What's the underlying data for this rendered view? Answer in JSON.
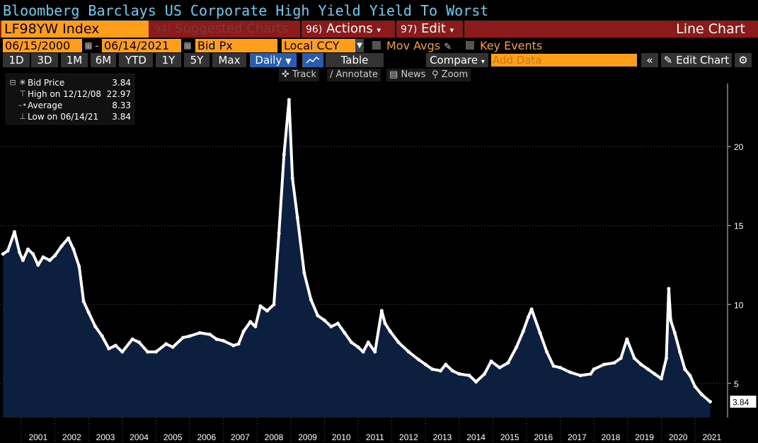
{
  "title": "Bloomberg Barclays US Corporate High Yield Yield To Worst",
  "toolbar": {
    "ticker": "LF98YW Index",
    "suggested": {
      "num": "94)",
      "label": "Suggested Charts"
    },
    "actions": {
      "num": "96)",
      "label": "Actions"
    },
    "edit": {
      "num": "97)",
      "label": "Edit"
    },
    "chart_type": "Line Chart",
    "start_date": "06/15/2000",
    "end_date": "06/14/2021",
    "field": "Bid Px",
    "currency": "Local CCY",
    "mov_avgs": "Mov Avgs",
    "key_events": "Key Events",
    "periods": [
      "1D",
      "3D",
      "1M",
      "6M",
      "YTD",
      "1Y",
      "5Y",
      "Max"
    ],
    "frequency": "Daily",
    "table": "Table",
    "compare": "Compare",
    "add_data_placeholder": "Add Data",
    "edit_chart": "Edit Chart",
    "tools": [
      "Track",
      "Annotate",
      "News",
      "Zoom"
    ]
  },
  "legend": [
    {
      "label": "Bid Price",
      "value": "3.84"
    },
    {
      "label": "High on 12/12/08",
      "value": "22.97"
    },
    {
      "label": "Average",
      "value": "8.33"
    },
    {
      "label": "Low on 06/14/21",
      "value": "3.84"
    }
  ],
  "colors": {
    "accent": "#ff9e1b",
    "title": "#5fd1f5",
    "area": "#0c1f3f",
    "line": "#ffffff",
    "bar": "#8b1a1a"
  },
  "chart_data": {
    "type": "area",
    "title": "",
    "xlabel": "",
    "ylabel": "",
    "ylim": [
      2.3,
      24
    ],
    "yticks": [
      5,
      10,
      15,
      20
    ],
    "xticks": [
      "2001",
      "2002",
      "2003",
      "2004",
      "2005",
      "2006",
      "2007",
      "2008",
      "2009",
      "2010",
      "2011",
      "2012",
      "2013",
      "2014",
      "2015",
      "2016",
      "2017",
      "2018",
      "2019",
      "2020",
      "2021"
    ],
    "last_value_label": "3.84",
    "x_start": 2000.46,
    "x_end": 2021.45,
    "series": [
      {
        "name": "Bid Price",
        "x": [
          2000.46,
          2000.6,
          2000.8,
          2000.95,
          2001.05,
          2001.2,
          2001.35,
          2001.5,
          2001.65,
          2001.85,
          2002.0,
          2002.2,
          2002.4,
          2002.55,
          2002.72,
          2002.85,
          2003.0,
          2003.2,
          2003.4,
          2003.6,
          2003.8,
          2004.0,
          2004.3,
          2004.5,
          2004.75,
          2005.0,
          2005.3,
          2005.5,
          2005.8,
          2006.0,
          2006.3,
          2006.6,
          2006.8,
          2007.0,
          2007.3,
          2007.45,
          2007.6,
          2007.8,
          2007.95,
          2008.1,
          2008.3,
          2008.5,
          2008.65,
          2008.8,
          2008.95,
          2009.05,
          2009.2,
          2009.4,
          2009.6,
          2009.8,
          2010.0,
          2010.2,
          2010.4,
          2010.6,
          2010.8,
          2011.0,
          2011.15,
          2011.3,
          2011.5,
          2011.7,
          2011.8,
          2011.95,
          2012.2,
          2012.5,
          2012.8,
          2013.0,
          2013.2,
          2013.45,
          2013.6,
          2013.8,
          2014.0,
          2014.3,
          2014.5,
          2014.75,
          2014.95,
          2015.2,
          2015.45,
          2015.7,
          2015.9,
          2016.05,
          2016.15,
          2016.4,
          2016.6,
          2016.8,
          2017.0,
          2017.3,
          2017.6,
          2017.9,
          2018.0,
          2018.3,
          2018.6,
          2018.8,
          2018.98,
          2019.2,
          2019.4,
          2019.6,
          2019.8,
          2020.0,
          2020.15,
          2020.22,
          2020.28,
          2020.4,
          2020.55,
          2020.7,
          2020.85,
          2021.0,
          2021.2,
          2021.45
        ],
        "values": [
          13.2,
          13.4,
          14.6,
          13.3,
          12.8,
          13.5,
          13.2,
          12.5,
          13.0,
          12.8,
          13.1,
          13.7,
          14.2,
          13.5,
          12.4,
          10.2,
          9.5,
          8.6,
          8.0,
          7.2,
          7.4,
          7.0,
          7.8,
          7.6,
          7.0,
          7.0,
          7.5,
          7.3,
          7.9,
          8.0,
          8.2,
          8.1,
          7.8,
          7.7,
          7.4,
          7.5,
          8.3,
          8.9,
          8.6,
          9.9,
          9.6,
          10.0,
          14.5,
          19.5,
          22.97,
          18.0,
          15.5,
          12.0,
          10.3,
          9.3,
          9.0,
          8.6,
          8.8,
          8.2,
          7.6,
          7.3,
          7.0,
          7.6,
          7.0,
          9.6,
          8.8,
          8.3,
          7.6,
          7.0,
          6.5,
          6.2,
          5.9,
          5.8,
          6.2,
          5.8,
          5.6,
          5.5,
          5.1,
          5.6,
          6.4,
          6.0,
          6.3,
          7.3,
          8.3,
          9.2,
          9.7,
          8.2,
          7.0,
          6.1,
          6.0,
          5.7,
          5.5,
          5.6,
          5.9,
          6.2,
          6.3,
          6.6,
          7.8,
          6.6,
          6.2,
          5.9,
          5.6,
          5.3,
          6.6,
          11.0,
          9.0,
          8.2,
          7.0,
          5.9,
          5.5,
          4.8,
          4.3,
          3.84
        ]
      }
    ]
  }
}
